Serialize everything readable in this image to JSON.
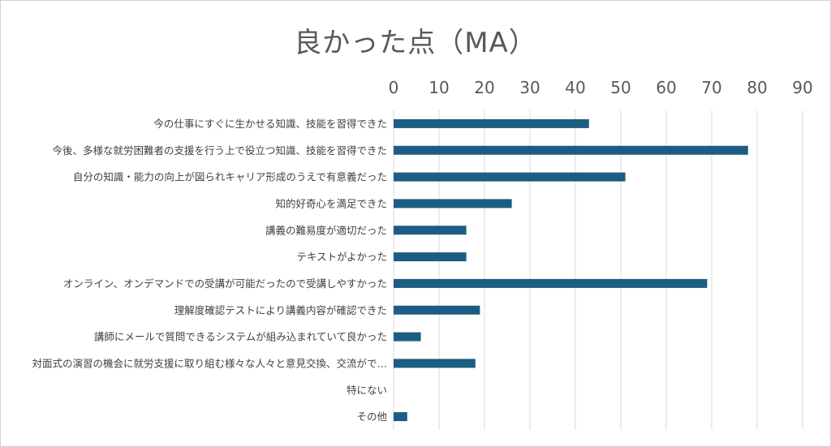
{
  "chart_data": {
    "type": "bar",
    "orientation": "horizontal",
    "title": "良かった点（MA）",
    "xlim": [
      0,
      90
    ],
    "x_ticks": [
      0,
      10,
      20,
      30,
      40,
      50,
      60,
      70,
      80,
      90
    ],
    "axis_position": "top",
    "grid": true,
    "bar_color": "#1b5e82",
    "categories": [
      "今の仕事にすぐに生かせる知識、技能を習得できた",
      "今後、多様な就労困難者の支援を行う上で役立つ知識、技能を習得できた",
      "自分の知識・能力の向上が図られキャリア形成のうえで有意義だった",
      "知的好奇心を満足できた",
      "講義の難易度が適切だった",
      "テキストがよかった",
      "オンライン、オンデマンドでの受講が可能だったので受講しやすかった",
      "理解度確認テストにより講義内容が確認できた",
      "講師にメールで質問できるシステムが組み込まれていて良かった",
      "対面式の演習の機会に就労支援に取り組む様々な人々と意見交換、交流がで…",
      "特にない",
      "その他"
    ],
    "values": [
      43,
      78,
      51,
      26,
      16,
      16,
      69,
      19,
      6,
      18,
      0,
      3
    ]
  }
}
